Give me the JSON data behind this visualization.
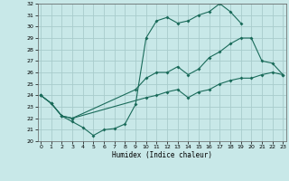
{
  "xlabel": "Humidex (Indice chaleur)",
  "bg_color": "#c8e8e8",
  "grid_color": "#a8cccc",
  "line_color": "#1a6b5a",
  "xmin": 0,
  "xmax": 23,
  "ymin": 20,
  "ymax": 32,
  "line1_x": [
    0,
    1,
    2,
    3,
    4,
    5,
    6,
    7,
    8,
    9,
    10,
    11,
    12,
    13,
    14,
    15,
    16,
    17,
    18,
    19
  ],
  "line1_y": [
    24.0,
    23.3,
    22.2,
    21.7,
    21.2,
    20.5,
    21.0,
    21.1,
    21.5,
    23.2,
    29.0,
    30.5,
    30.8,
    30.3,
    30.5,
    31.0,
    31.3,
    32.0,
    31.3,
    30.3
  ],
  "line2_x": [
    0,
    1,
    2,
    3,
    9,
    10,
    11,
    12,
    13,
    14,
    15,
    16,
    17,
    18,
    19,
    20,
    21,
    22,
    23
  ],
  "line2_y": [
    24.0,
    23.3,
    22.2,
    22.0,
    24.5,
    25.5,
    26.0,
    26.0,
    26.5,
    25.8,
    26.3,
    27.3,
    27.8,
    28.5,
    29.0,
    29.0,
    27.0,
    26.8,
    25.8
  ],
  "line3_x": [
    0,
    1,
    2,
    3,
    10,
    11,
    12,
    13,
    14,
    15,
    16,
    17,
    18,
    19,
    20,
    21,
    22,
    23
  ],
  "line3_y": [
    24.0,
    23.3,
    22.2,
    22.0,
    23.8,
    24.0,
    24.3,
    24.5,
    23.8,
    24.3,
    24.5,
    25.0,
    25.3,
    25.5,
    25.5,
    25.8,
    26.0,
    25.8
  ]
}
